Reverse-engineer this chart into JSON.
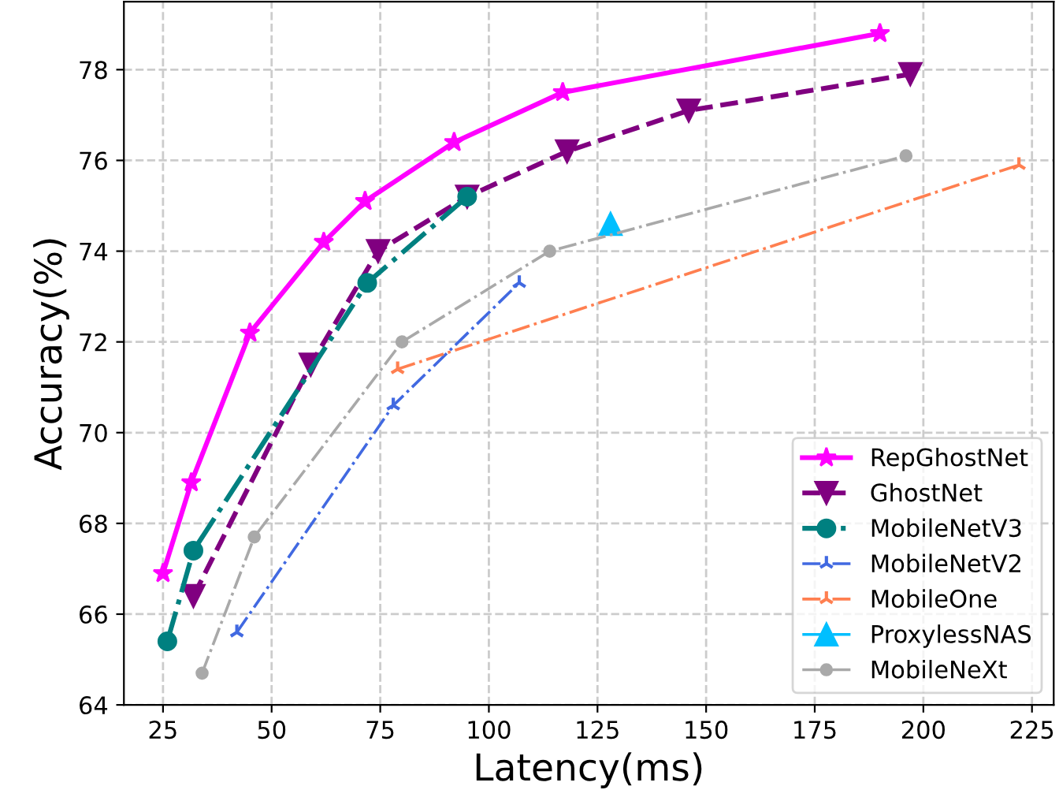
{
  "chart_data": {
    "type": "line",
    "xlabel": "Latency(ms)",
    "ylabel": "Accuracy(%)",
    "xlim": [
      16,
      230
    ],
    "ylim": [
      64,
      79.5
    ],
    "xticks": [
      25,
      50,
      75,
      100,
      125,
      150,
      175,
      200,
      225
    ],
    "yticks": [
      64,
      66,
      68,
      70,
      72,
      74,
      76,
      78
    ],
    "grid": true,
    "legend": "bottom right",
    "series": [
      {
        "name": "RepGhostNet",
        "color": "#ff00ff",
        "marker": "star",
        "line_style": "solid",
        "x": [
          25,
          31.5,
          45,
          62,
          71.5,
          92,
          117,
          190
        ],
        "values": [
          66.9,
          68.9,
          72.2,
          74.2,
          75.1,
          76.4,
          77.5,
          78.8
        ]
      },
      {
        "name": "GhostNet",
        "color": "#800080",
        "marker": "triangle_down",
        "line_style": "dashed",
        "x": [
          32,
          59,
          74.5,
          95,
          118,
          146,
          197
        ],
        "values": [
          66.4,
          71.5,
          74.0,
          75.2,
          76.2,
          77.1,
          77.9
        ]
      },
      {
        "name": "MobileNetV3",
        "color": "#008080",
        "marker": "circle",
        "line_style": "dashdot",
        "x": [
          26,
          32,
          72,
          95
        ],
        "values": [
          65.4,
          67.4,
          73.3,
          75.2
        ]
      },
      {
        "name": "MobileNetV2",
        "color": "#4169e1",
        "marker": "cross",
        "line_style": "dashdot",
        "x": [
          42,
          78,
          107
        ],
        "values": [
          65.6,
          70.6,
          73.3
        ]
      },
      {
        "name": "MobileOne",
        "color": "#ff7f50",
        "marker": "cross",
        "line_style": "dashdot",
        "x": [
          79,
          222
        ],
        "values": [
          71.4,
          75.9
        ]
      },
      {
        "name": "ProxylessNAS",
        "color": "#00bfff",
        "marker": "triangle",
        "line_style": "dashdot",
        "x": [
          128
        ],
        "values": [
          74.6
        ]
      },
      {
        "name": "MobileNeXt",
        "color": "#a9a9a9",
        "marker": "circle",
        "line_style": "dashdot",
        "x": [
          34,
          46,
          80,
          114,
          196
        ],
        "values": [
          64.7,
          67.7,
          72.0,
          74.0,
          76.1
        ]
      }
    ]
  }
}
